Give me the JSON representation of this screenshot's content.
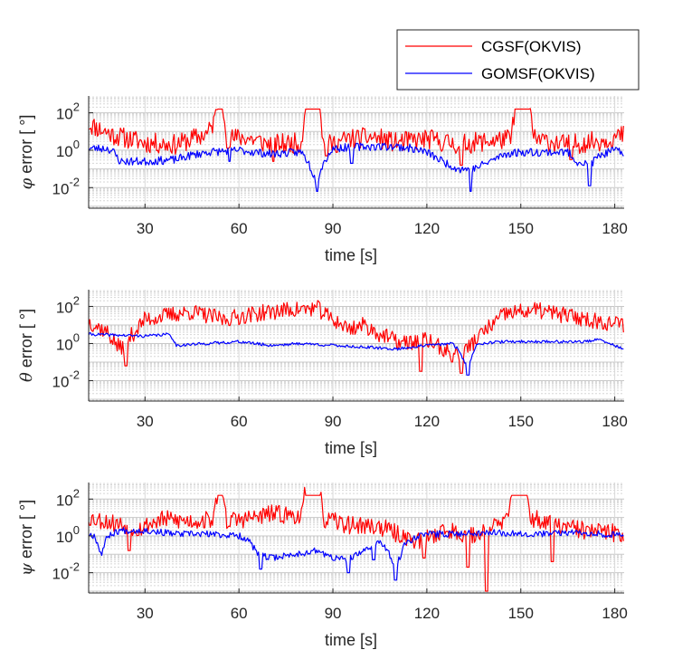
{
  "chart_data": {
    "legend": {
      "placement": "top-right",
      "entries": [
        {
          "label": "CGSF(OKVIS)",
          "color": "#ff0000"
        },
        {
          "label": "GOMSF(OKVIS)",
          "color": "#0000ff"
        }
      ]
    },
    "panels": [
      {
        "type": "line",
        "ylabel_symbol": "φ",
        "ylabel_rest": " error [  °]",
        "xlabel": "time [s]",
        "xlim": [
          12,
          183
        ],
        "ylim_exp": [
          -3.1,
          2.9
        ],
        "yscale": "log",
        "grid": true,
        "xticks": [
          "30",
          "60",
          "90",
          "120",
          "150",
          "180"
        ],
        "yticks": [
          {
            "base": "10",
            "exp": "2",
            "value": 2
          },
          {
            "base": "10",
            "exp": "0",
            "value": 0
          },
          {
            "base": "10",
            "exp": "-2",
            "value": -2
          }
        ],
        "series": [
          {
            "name": "CGSF(OKVIS)",
            "color": "#ff0000",
            "seed": 11,
            "segments": [
              [
                12,
                1.4
              ],
              [
                20,
                0.8
              ],
              [
                30,
                0.4
              ],
              [
                40,
                0.3
              ],
              [
                45,
                0.6
              ],
              [
                50,
                0.9
              ],
              [
                52,
                1.5
              ],
              [
                53,
                2.2
              ],
              [
                55,
                2.2
              ],
              [
                56,
                0.6
              ],
              [
                62,
                0.7
              ],
              [
                70,
                0.3
              ],
              [
                80,
                0.4
              ],
              [
                81,
                2.2
              ],
              [
                86,
                2.2
              ],
              [
                87,
                0.2
              ],
              [
                95,
                0.6
              ],
              [
                103,
                0.7
              ],
              [
                110,
                0.4
              ],
              [
                120,
                0.6
              ],
              [
                130,
                0.3
              ],
              [
                140,
                0.5
              ],
              [
                147,
                0.6
              ],
              [
                148,
                2.2
              ],
              [
                153,
                2.2
              ],
              [
                154,
                0.6
              ],
              [
                165,
                0.3
              ],
              [
                175,
                0.5
              ],
              [
                183,
                0.8
              ]
            ],
            "noise": 0.55,
            "dips": [
              [
                71,
                -0.6
              ],
              [
                88,
                -0.3
              ],
              [
                131,
                -0.8
              ],
              [
                166,
                -0.5
              ]
            ]
          },
          {
            "name": "GOMSF(OKVIS)",
            "color": "#0000ff",
            "seed": 23,
            "segments": [
              [
                12,
                0.1
              ],
              [
                18,
                0.1
              ],
              [
                20,
                -0.1
              ],
              [
                22,
                -0.6
              ],
              [
                30,
                -0.6
              ],
              [
                40,
                -0.5
              ],
              [
                44,
                -0.3
              ],
              [
                50,
                -0.1
              ],
              [
                60,
                0
              ],
              [
                70,
                -0.2
              ],
              [
                80,
                -0.1
              ],
              [
                82,
                -0.6
              ],
              [
                85,
                -1.8
              ],
              [
                86,
                -1.0
              ],
              [
                88,
                -0.4
              ],
              [
                90,
                0.1
              ],
              [
                100,
                0.2
              ],
              [
                110,
                0.2
              ],
              [
                115,
                0.1
              ],
              [
                120,
                -0.1
              ],
              [
                125,
                -0.6
              ],
              [
                130,
                -1.0
              ],
              [
                135,
                -1.0
              ],
              [
                140,
                -0.6
              ],
              [
                145,
                -0.2
              ],
              [
                150,
                -0.1
              ],
              [
                160,
                -0.1
              ],
              [
                165,
                -0.1
              ],
              [
                168,
                -0.6
              ],
              [
                172,
                -0.8
              ],
              [
                175,
                -0.3
              ],
              [
                180,
                0
              ],
              [
                183,
                -0.2
              ]
            ],
            "noise": 0.22,
            "dips": [
              [
                85,
                -2.2
              ],
              [
                134,
                -2.2
              ],
              [
                172,
                -1.9
              ],
              [
                96,
                -0.7
              ],
              [
                57,
                -0.6
              ]
            ]
          }
        ]
      },
      {
        "type": "line",
        "ylabel_symbol": "θ",
        "ylabel_rest": " error [  °]",
        "xlabel": "time [s]",
        "xlim": [
          12,
          183
        ],
        "ylim_exp": [
          -3.1,
          2.9
        ],
        "yscale": "log",
        "grid": true,
        "xticks": [
          "30",
          "60",
          "90",
          "120",
          "150",
          "180"
        ],
        "yticks": [
          {
            "base": "10",
            "exp": "2",
            "value": 2
          },
          {
            "base": "10",
            "exp": "0",
            "value": 0
          },
          {
            "base": "10",
            "exp": "-2",
            "value": -2
          }
        ],
        "series": [
          {
            "name": "CGSF(OKVIS)",
            "color": "#ff0000",
            "seed": 37,
            "segments": [
              [
                12,
                1.2
              ],
              [
                18,
                0.6
              ],
              [
                22,
                -0.3
              ],
              [
                26,
                0.5
              ],
              [
                30,
                1.3
              ],
              [
                40,
                1.6
              ],
              [
                45,
                1.7
              ],
              [
                55,
                1.3
              ],
              [
                65,
                1.6
              ],
              [
                75,
                1.8
              ],
              [
                85,
                1.9
              ],
              [
                88,
                1.5
              ],
              [
                95,
                0.8
              ],
              [
                100,
                1.0
              ],
              [
                105,
                0.5
              ],
              [
                112,
                0.0
              ],
              [
                120,
                0.2
              ],
              [
                128,
                -0.6
              ],
              [
                132,
                -0.4
              ],
              [
                138,
                0.6
              ],
              [
                145,
                1.6
              ],
              [
                155,
                1.8
              ],
              [
                165,
                1.5
              ],
              [
                175,
                1.2
              ],
              [
                183,
                1.0
              ]
            ],
            "noise": 0.45,
            "dips": [
              [
                24,
                -1.2
              ],
              [
                118,
                -1.5
              ],
              [
                131,
                -1.6
              ],
              [
                128,
                -1.0
              ]
            ]
          },
          {
            "name": "GOMSF(OKVIS)",
            "color": "#0000ff",
            "seed": 41,
            "segments": [
              [
                12,
                0.5
              ],
              [
                30,
                0.4
              ],
              [
                38,
                0.5
              ],
              [
                40,
                -0.1
              ],
              [
                50,
                0.0
              ],
              [
                60,
                0.1
              ],
              [
                70,
                -0.1
              ],
              [
                80,
                0.0
              ],
              [
                90,
                -0.1
              ],
              [
                100,
                -0.2
              ],
              [
                110,
                -0.3
              ],
              [
                120,
                -0.1
              ],
              [
                128,
                0.0
              ],
              [
                130,
                -0.3
              ],
              [
                133,
                -1.3
              ],
              [
                136,
                0.0
              ],
              [
                145,
                0.1
              ],
              [
                160,
                0.1
              ],
              [
                170,
                0.1
              ],
              [
                175,
                0.2
              ],
              [
                183,
                -0.3
              ]
            ],
            "noise": 0.08,
            "dips": [
              [
                133,
                -1.7
              ]
            ]
          }
        ]
      },
      {
        "type": "line",
        "ylabel_symbol": "ψ",
        "ylabel_rest": " error [  °]",
        "xlabel": "time [s]",
        "xlim": [
          12,
          183
        ],
        "ylim_exp": [
          -3.1,
          2.9
        ],
        "yscale": "log",
        "grid": true,
        "xticks": [
          "30",
          "60",
          "90",
          "120",
          "150",
          "180"
        ],
        "yticks": [
          {
            "base": "10",
            "exp": "2",
            "value": 2
          },
          {
            "base": "10",
            "exp": "0",
            "value": 0
          },
          {
            "base": "10",
            "exp": "-2",
            "value": -2
          }
        ],
        "series": [
          {
            "name": "CGSF(OKVIS)",
            "color": "#ff0000",
            "seed": 53,
            "segments": [
              [
                12,
                1.0
              ],
              [
                20,
                0.7
              ],
              [
                28,
                0.4
              ],
              [
                35,
                0.9
              ],
              [
                45,
                0.8
              ],
              [
                52,
                0.9
              ],
              [
                53,
                2.2
              ],
              [
                55,
                2.2
              ],
              [
                56,
                0.8
              ],
              [
                65,
                1.0
              ],
              [
                70,
                1.2
              ],
              [
                80,
                1.1
              ],
              [
                81,
                2.2
              ],
              [
                86,
                2.2
              ],
              [
                87,
                0.9
              ],
              [
                95,
                0.6
              ],
              [
                105,
                0.5
              ],
              [
                112,
                0.0
              ],
              [
                118,
                -0.3
              ],
              [
                125,
                0.3
              ],
              [
                130,
                0.2
              ],
              [
                135,
                0.0
              ],
              [
                140,
                0.4
              ],
              [
                146,
                0.9
              ],
              [
                147,
                2.2
              ],
              [
                152,
                2.2
              ],
              [
                153,
                1.0
              ],
              [
                160,
                0.6
              ],
              [
                170,
                0.3
              ],
              [
                183,
                0.1
              ]
            ],
            "noise": 0.5,
            "dips": [
              [
                139,
                -3.0
              ],
              [
                133,
                -1.7
              ],
              [
                160,
                -1.4
              ],
              [
                119,
                -1.2
              ],
              [
                25,
                -0.8
              ]
            ]
          },
          {
            "name": "GOMSF(OKVIS)",
            "color": "#0000ff",
            "seed": 67,
            "segments": [
              [
                12,
                0.1
              ],
              [
                14,
                0.0
              ],
              [
                16,
                -1.0
              ],
              [
                18,
                0.0
              ],
              [
                22,
                0.3
              ],
              [
                30,
                0.3
              ],
              [
                40,
                0.1
              ],
              [
                50,
                0.1
              ],
              [
                60,
                0.0
              ],
              [
                63,
                -0.2
              ],
              [
                66,
                -1.0
              ],
              [
                70,
                -1.2
              ],
              [
                78,
                -1.0
              ],
              [
                85,
                -0.8
              ],
              [
                90,
                -1.2
              ],
              [
                95,
                -1.3
              ],
              [
                100,
                -0.8
              ],
              [
                105,
                -0.3
              ],
              [
                108,
                -1.0
              ],
              [
                110,
                -1.8
              ],
              [
                113,
                -0.4
              ],
              [
                118,
                0.1
              ],
              [
                125,
                0.1
              ],
              [
                140,
                0.2
              ],
              [
                155,
                0.1
              ],
              [
                170,
                0.2
              ],
              [
                183,
                0.0
              ]
            ],
            "noise": 0.18,
            "dips": [
              [
                67,
                -1.8
              ],
              [
                95,
                -2.0
              ],
              [
                110,
                -2.4
              ],
              [
                103,
                -1.3
              ]
            ]
          }
        ]
      }
    ]
  }
}
